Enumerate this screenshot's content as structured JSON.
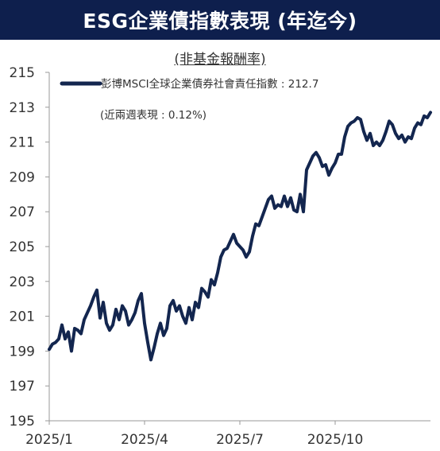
{
  "title": "ESG企業債指數表現 (年迄今)",
  "subtitle": "(非基金報酬率)",
  "colors": {
    "title_bg": "#0e1f4d",
    "line": "#13264f",
    "axis": "#9a9a9a",
    "text": "#333333"
  },
  "chart_data": {
    "type": "line",
    "title": "ESG企業債指數表現 (年迄今)",
    "subtitle": "(非基金報酬率)",
    "ylim": [
      195,
      215
    ],
    "yticks": [
      "215",
      "213",
      "211",
      "209",
      "207",
      "205",
      "203",
      "201",
      "199",
      "197",
      "195"
    ],
    "xticks": [
      "2025/1",
      "2025/4",
      "2025/7",
      "2025/10"
    ],
    "xlim": [
      0,
      12
    ],
    "xtick_positions": [
      0,
      3,
      6,
      9
    ],
    "legend": {
      "label": "彭博MSCI全球企業債券社會責任指數 : 212.7",
      "note": "(近兩週表現 : 0.12%)"
    },
    "series": [
      {
        "name": "彭博MSCI全球企業債券社會責任指數",
        "x": [
          0,
          0.1,
          0.2,
          0.3,
          0.4,
          0.5,
          0.6,
          0.7,
          0.8,
          0.9,
          1.0,
          1.1,
          1.2,
          1.3,
          1.4,
          1.5,
          1.6,
          1.7,
          1.8,
          1.9,
          2.0,
          2.1,
          2.2,
          2.3,
          2.4,
          2.5,
          2.6,
          2.7,
          2.8,
          2.9,
          3.0,
          3.1,
          3.2,
          3.3,
          3.4,
          3.5,
          3.6,
          3.7,
          3.8,
          3.9,
          4.0,
          4.1,
          4.2,
          4.3,
          4.4,
          4.5,
          4.6,
          4.7,
          4.8,
          4.9,
          5.0,
          5.1,
          5.2,
          5.3,
          5.4,
          5.5,
          5.6,
          5.7,
          5.8,
          5.9,
          6.0,
          6.1,
          6.2,
          6.3,
          6.4,
          6.5,
          6.6,
          6.7,
          6.8,
          6.9,
          7.0,
          7.1,
          7.2,
          7.3,
          7.4,
          7.5,
          7.6,
          7.7,
          7.8,
          7.9,
          8.0,
          8.1,
          8.2,
          8.3,
          8.4,
          8.5,
          8.6,
          8.7,
          8.8,
          8.9,
          9.0,
          9.1,
          9.2,
          9.3,
          9.4,
          9.5,
          9.6,
          9.7,
          9.8,
          9.9,
          10.0,
          10.1,
          10.2,
          10.3,
          10.4,
          10.5,
          10.6,
          10.7,
          10.8,
          10.9,
          11.0,
          11.1,
          11.2,
          11.3,
          11.4,
          11.5,
          11.6,
          11.7,
          11.8,
          11.9,
          12.0
        ],
        "values": [
          199.1,
          199.4,
          199.5,
          199.7,
          200.5,
          199.7,
          200.1,
          199.0,
          200.3,
          200.2,
          200.0,
          200.8,
          201.2,
          201.6,
          202.1,
          202.5,
          200.9,
          201.8,
          200.6,
          200.2,
          200.5,
          201.4,
          200.8,
          201.6,
          201.3,
          200.5,
          200.8,
          201.2,
          201.9,
          202.3,
          200.6,
          199.5,
          198.5,
          199.2,
          200.0,
          200.6,
          199.9,
          200.3,
          201.6,
          201.9,
          201.3,
          201.6,
          201.0,
          200.6,
          201.5,
          200.8,
          201.8,
          201.5,
          202.6,
          202.4,
          202.1,
          203.1,
          202.8,
          203.5,
          204.4,
          204.8,
          204.9,
          205.3,
          205.7,
          205.2,
          205.0,
          204.8,
          204.4,
          204.7,
          205.6,
          206.3,
          206.2,
          206.7,
          207.2,
          207.7,
          207.9,
          207.2,
          207.4,
          207.3,
          207.9,
          207.3,
          207.8,
          207.1,
          207.0,
          208.0,
          207.0,
          209.4,
          209.8,
          210.2,
          210.4,
          210.1,
          209.6,
          209.7,
          209.1,
          209.5,
          209.8,
          210.3,
          210.3,
          211.3,
          211.9,
          212.1,
          212.2,
          212.4,
          212.3,
          211.6,
          211.1,
          211.5,
          210.8,
          211.0,
          210.8,
          211.1,
          211.6,
          212.2,
          212.0,
          211.5,
          211.2,
          211.4,
          211.0,
          211.3,
          211.2,
          211.8,
          212.1,
          212.0,
          212.5,
          212.4,
          212.7
        ]
      }
    ]
  }
}
